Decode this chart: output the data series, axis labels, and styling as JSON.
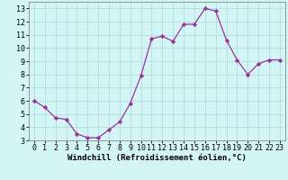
{
  "x": [
    0,
    1,
    2,
    3,
    4,
    5,
    6,
    7,
    8,
    9,
    10,
    11,
    12,
    13,
    14,
    15,
    16,
    17,
    18,
    19,
    20,
    21,
    22,
    23
  ],
  "y": [
    6.0,
    5.5,
    4.7,
    4.6,
    3.5,
    3.2,
    3.2,
    3.8,
    4.4,
    5.8,
    7.9,
    10.7,
    10.9,
    10.5,
    11.8,
    11.8,
    13.0,
    12.8,
    10.6,
    9.1,
    8.0,
    8.8,
    9.1,
    9.1
  ],
  "line_color": "#993399",
  "marker": "D",
  "marker_size": 2.2,
  "bg_color": "#d4f5f5",
  "grid_color": "#b0dede",
  "xlabel": "Windchill (Refroidissement éolien,°C)",
  "ylabel_ticks": [
    3,
    4,
    5,
    6,
    7,
    8,
    9,
    10,
    11,
    12,
    13
  ],
  "xlim": [
    -0.5,
    23.5
  ],
  "ylim": [
    3,
    13.5
  ],
  "xlabel_fontsize": 6.5,
  "tick_fontsize": 6.0,
  "spine_color": "#888888",
  "bottom_bar_color": "#7744aa"
}
